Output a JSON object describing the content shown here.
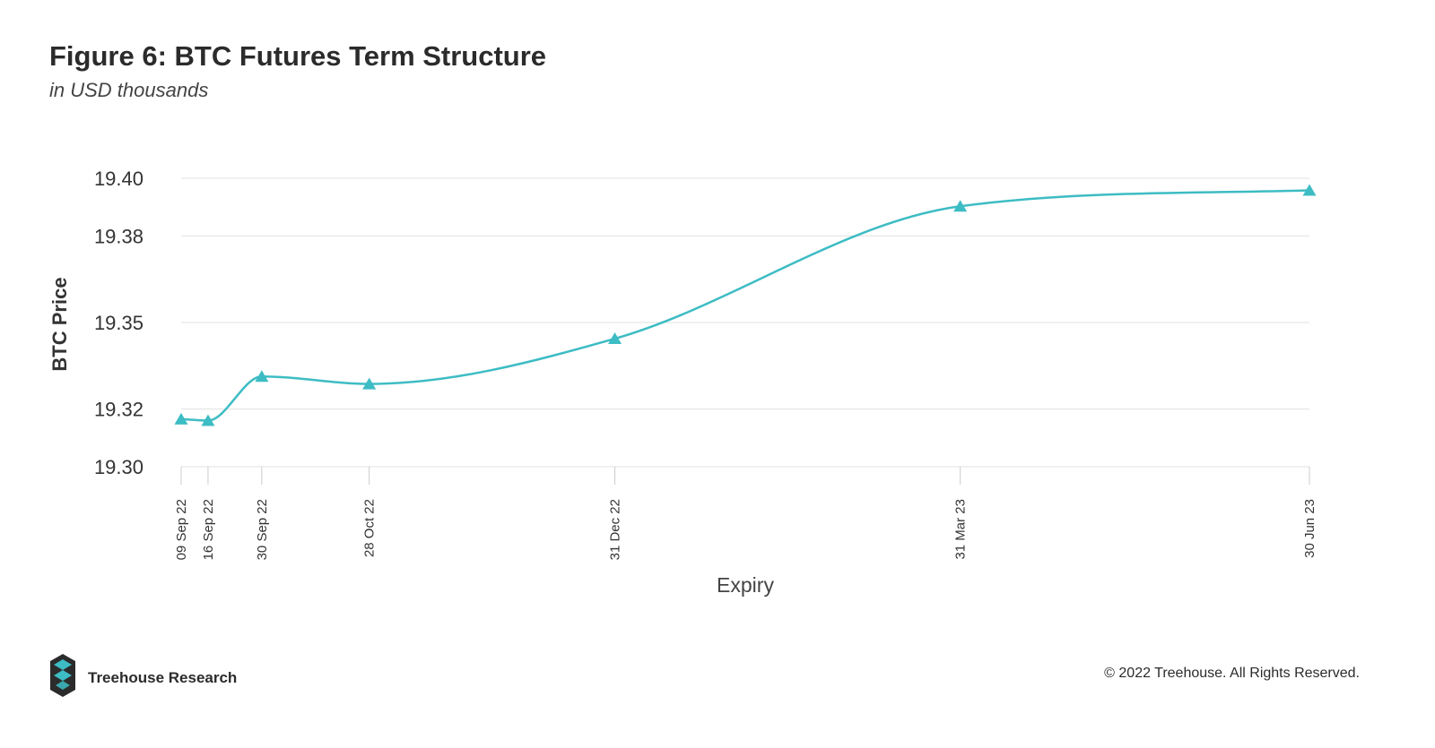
{
  "header": {
    "title": "Figure 6: BTC Futures Term Structure",
    "subtitle": "in USD thousands"
  },
  "footer": {
    "brand_name": "Treehouse Research",
    "copyright": "© 2022 Treehouse. All Rights Reserved."
  },
  "colors": {
    "series": "#3dbcc4",
    "grid": "#e6e6e6",
    "text": "#2b2b2b",
    "logo_dark": "#2b2b2b",
    "logo_accent": "#3dbcc4"
  },
  "chart_data": {
    "type": "line",
    "title": "Figure 6: BTC Futures Term Structure",
    "subtitle": "in USD thousands",
    "xlabel": "Expiry",
    "ylabel": "BTC Price",
    "x_scale": "time",
    "x": [
      "2022-09-09",
      "2022-09-16",
      "2022-09-30",
      "2022-10-28",
      "2022-12-31",
      "2023-03-31",
      "2023-06-30"
    ],
    "tick_labels": [
      "09 Sep 22",
      "16 Sep 22",
      "30 Sep 22",
      "28 Oct 22",
      "31 Dec 22",
      "31 Mar 23",
      "30 Jun 23"
    ],
    "series": [
      {
        "values": [
          19.3165,
          19.316,
          19.3313,
          19.3287,
          19.3444,
          19.3903,
          19.3958
        ],
        "marker": "triangle",
        "smooth": true
      }
    ],
    "ylim": [
      19.3,
      19.4
    ],
    "yticks": [
      19.3,
      19.32,
      19.35,
      19.38,
      19.4
    ],
    "ytick_labels": [
      "19.30",
      "19.32",
      "19.35",
      "19.38",
      "19.40"
    ],
    "grid": true,
    "legend": "none"
  }
}
